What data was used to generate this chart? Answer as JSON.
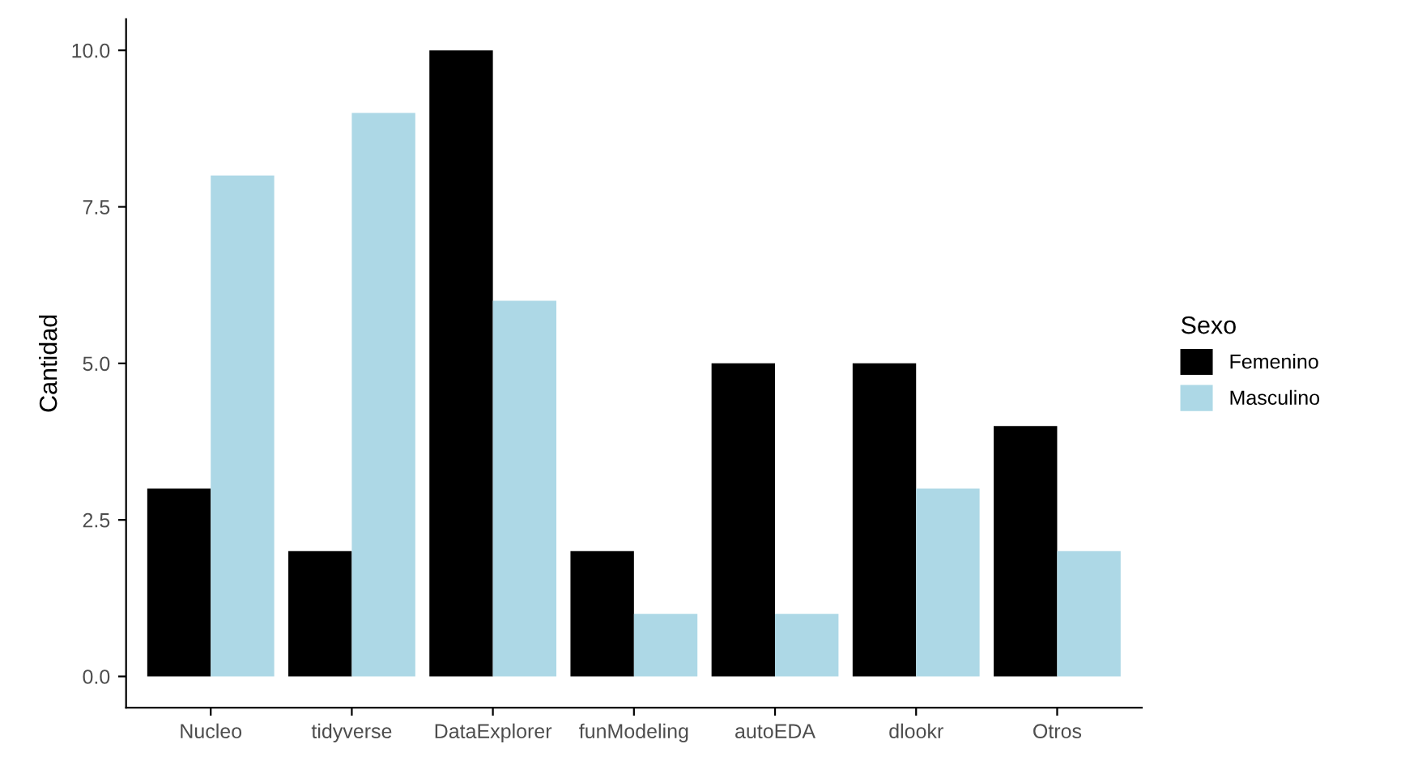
{
  "chart_data": {
    "type": "bar",
    "ylabel": "Cantidad",
    "legend_title": "Sexo",
    "legend": "right",
    "grid": false,
    "categories": [
      "Nucleo",
      "tidyverse",
      "DataExplorer",
      "funModeling",
      "autoEDA",
      "dlookr",
      "Otros"
    ],
    "series": [
      {
        "name": "Femenino",
        "color": "#000000",
        "values": [
          3,
          2,
          10,
          2,
          5,
          5,
          4
        ]
      },
      {
        "name": "Masculino",
        "color": "#add8e6",
        "values": [
          8,
          9,
          6,
          1,
          1,
          3,
          2
        ]
      }
    ],
    "ylim": [
      -0.5,
      10.5
    ],
    "yticks": [
      {
        "value": 0,
        "label": "0.0"
      },
      {
        "value": 2.5,
        "label": "2.5"
      },
      {
        "value": 5,
        "label": "5.0"
      },
      {
        "value": 7.5,
        "label": "7.5"
      },
      {
        "value": 10,
        "label": "10.0"
      }
    ]
  }
}
